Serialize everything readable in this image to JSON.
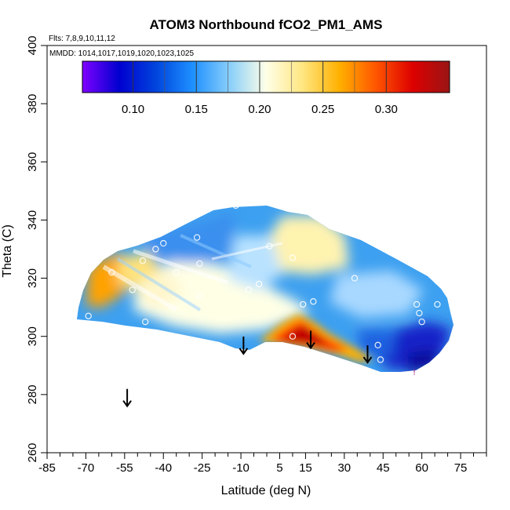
{
  "chart_data": {
    "type": "heatmap",
    "title": "ATOM3 Northbound fCO2_PM1_AMS",
    "flights_note": "Flts: 7,8,9,10,11,12",
    "mmdd_note": "MMDD: 1014,1017,1019,1020,1023,1025",
    "xlabel": "Latitude (deg N)",
    "ylabel": "Theta (C)",
    "xlim": [
      -85,
      85
    ],
    "ylim": [
      260,
      400
    ],
    "x_ticks": [
      -85,
      -70,
      -55,
      -40,
      -25,
      -10,
      5,
      15,
      30,
      45,
      60,
      75
    ],
    "x_tick_labels": [
      "-85",
      "-70",
      "-55",
      "-40",
      "-25",
      "-10",
      "5",
      "15",
      "30",
      "45",
      "60",
      "75"
    ],
    "x_minor_ticks": [
      -80,
      -75,
      -65,
      -60,
      -50,
      -45,
      -35,
      -30,
      -20,
      -15,
      -5,
      0,
      10,
      20,
      25,
      35,
      40,
      50,
      55,
      65,
      70,
      80,
      85
    ],
    "y_ticks": [
      260,
      280,
      300,
      320,
      340,
      360,
      380,
      400
    ],
    "y_tick_labels": [
      "260",
      "280",
      "300",
      "320",
      "340",
      "360",
      "380",
      "400"
    ],
    "colorbar": {
      "min": 0.06,
      "max": 0.35,
      "ticks": [
        0.1,
        0.15,
        0.2,
        0.25,
        0.3
      ],
      "tick_labels": [
        "0.10",
        "0.15",
        "0.20",
        "0.25",
        "0.30"
      ],
      "colors": [
        "#7f00ff",
        "#0000d0",
        "#0044dd",
        "#1e90ff",
        "#87cefa",
        "#ffffe8",
        "#ffe680",
        "#ffb000",
        "#ff5500",
        "#dd0000",
        "#9a1515"
      ]
    },
    "tropopause_arrows": [
      {
        "lat": -54,
        "theta": 276
      },
      {
        "lat": -9,
        "theta": 294
      },
      {
        "lat": 17,
        "theta": 296
      },
      {
        "lat": 39,
        "theta": 291
      }
    ],
    "sample_points": [
      {
        "lat": -69,
        "theta": 325
      },
      {
        "lat": -69,
        "theta": 307
      },
      {
        "lat": -60,
        "theta": 322
      },
      {
        "lat": -52,
        "theta": 316
      },
      {
        "lat": -48,
        "theta": 326
      },
      {
        "lat": -47,
        "theta": 305
      },
      {
        "lat": -43,
        "theta": 330
      },
      {
        "lat": -40,
        "theta": 332
      },
      {
        "lat": -35,
        "theta": 322
      },
      {
        "lat": -27,
        "theta": 334
      },
      {
        "lat": -26,
        "theta": 325
      },
      {
        "lat": -26,
        "theta": 314
      },
      {
        "lat": -12,
        "theta": 345
      },
      {
        "lat": -7,
        "theta": 316
      },
      {
        "lat": -3,
        "theta": 318
      },
      {
        "lat": 1,
        "theta": 331
      },
      {
        "lat": 10,
        "theta": 327
      },
      {
        "lat": 10,
        "theta": 300
      },
      {
        "lat": 14,
        "theta": 311
      },
      {
        "lat": 18,
        "theta": 312
      },
      {
        "lat": 34,
        "theta": 320
      },
      {
        "lat": 43,
        "theta": 297
      },
      {
        "lat": 44,
        "theta": 292
      },
      {
        "lat": 58,
        "theta": 311
      },
      {
        "lat": 59,
        "theta": 308
      },
      {
        "lat": 60,
        "theta": 305
      },
      {
        "lat": 66,
        "theta": 319
      },
      {
        "lat": 66,
        "theta": 311
      }
    ],
    "grid": false,
    "legend": "colorbar top"
  }
}
